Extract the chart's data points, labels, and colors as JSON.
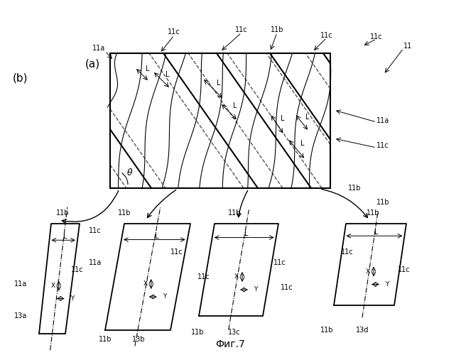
{
  "bg_color": "#ffffff",
  "line_color": "#000000",
  "fig_width": 6.49,
  "fig_height": 5.0,
  "title": "Фиг.7",
  "label_a": "(a)",
  "label_b": "(b)"
}
